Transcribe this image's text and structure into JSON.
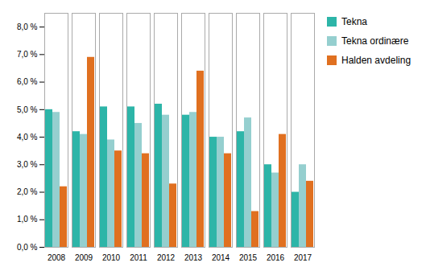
{
  "chart_data": {
    "type": "bar",
    "categories": [
      "2008",
      "2009",
      "2010",
      "2011",
      "2012",
      "2013",
      "2014",
      "2015",
      "2016",
      "2017"
    ],
    "series": [
      {
        "name": "Tekna",
        "color": "#2DB5A8",
        "values": [
          0.05,
          0.042,
          0.051,
          0.051,
          0.052,
          0.048,
          0.04,
          0.042,
          0.03,
          0.02
        ]
      },
      {
        "name": "Tekna ordinære",
        "color": "#95CFCF",
        "values": [
          0.049,
          0.041,
          0.039,
          0.045,
          0.048,
          0.049,
          0.04,
          0.047,
          0.027,
          0.03
        ]
      },
      {
        "name": "Halden avdeling",
        "color": "#E07020",
        "values": [
          0.022,
          0.069,
          0.035,
          0.034,
          0.023,
          0.064,
          0.034,
          0.013,
          0.041,
          0.024
        ]
      }
    ],
    "ylim": [
      0.0,
      0.085
    ],
    "yticks": [
      {
        "value": 0.0,
        "label": "0,0 %"
      },
      {
        "value": 0.01,
        "label": "1,0 %"
      },
      {
        "value": 0.02,
        "label": "2,0 %"
      },
      {
        "value": 0.03,
        "label": "3,0 %"
      },
      {
        "value": 0.04,
        "label": "4,0 %"
      },
      {
        "value": 0.05,
        "label": "5,0 %"
      },
      {
        "value": 0.06,
        "label": "6,0 %"
      },
      {
        "value": 0.07,
        "label": "7,0 %"
      },
      {
        "value": 0.08,
        "label": "8,0 %"
      }
    ],
    "grid": false,
    "legend": "right"
  }
}
